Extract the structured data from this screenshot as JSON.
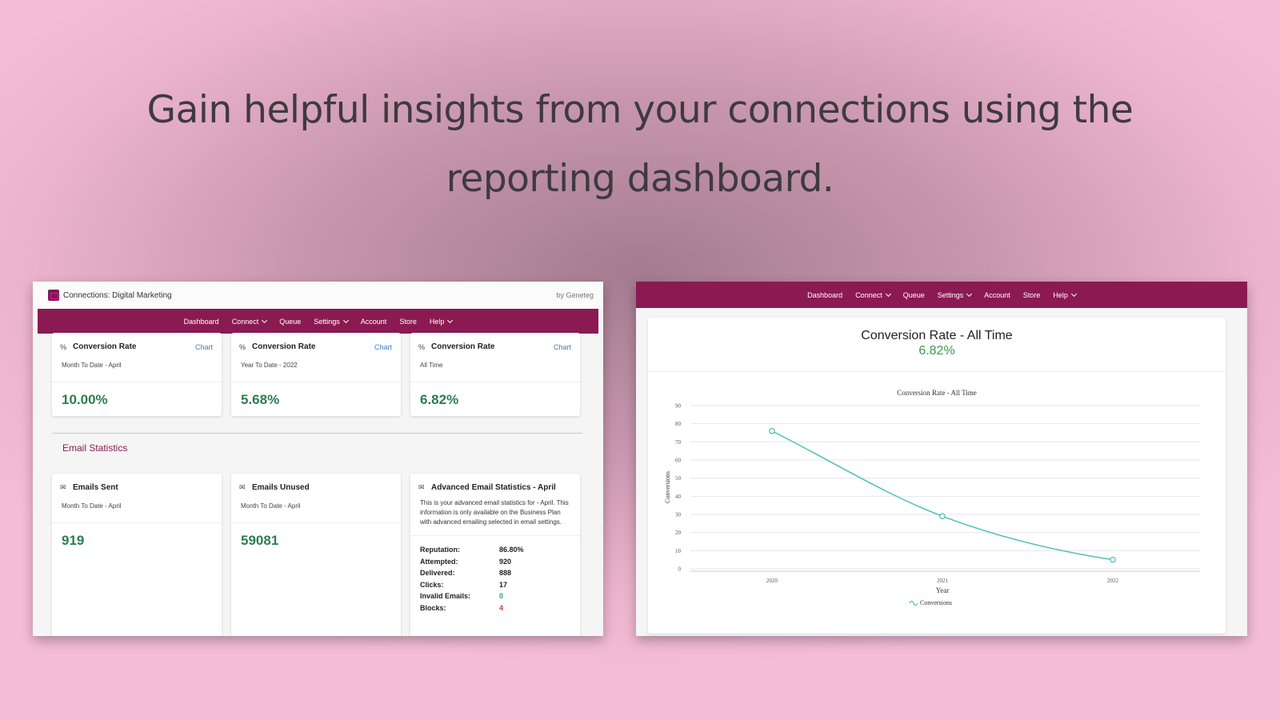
{
  "headline": "Gain helpful insights from your connections using the reporting dashboard.",
  "colors": {
    "nav": "#8b1a52",
    "value_green": "#2e7d4f",
    "line": "#4fbfb3",
    "link": "#3b7fc4"
  },
  "left_window": {
    "app_title": "Connections: Digital Marketing",
    "by": "by Geneteg",
    "nav": [
      {
        "label": "Dashboard",
        "dropdown": false
      },
      {
        "label": "Connect",
        "dropdown": true
      },
      {
        "label": "Queue",
        "dropdown": false
      },
      {
        "label": "Settings",
        "dropdown": true
      },
      {
        "label": "Account",
        "dropdown": false
      },
      {
        "label": "Store",
        "dropdown": false
      },
      {
        "label": "Help",
        "dropdown": true
      }
    ],
    "conversion_cards": [
      {
        "icon": "percent-icon",
        "title": "Conversion Rate",
        "link": "Chart",
        "subtitle": "Month To Date - April",
        "value": "10.00%"
      },
      {
        "icon": "percent-icon",
        "title": "Conversion Rate",
        "link": "Chart",
        "subtitle": "Year To Date - 2022",
        "value": "5.68%"
      },
      {
        "icon": "percent-icon",
        "title": "Conversion Rate",
        "link": "Chart",
        "subtitle": "All Time",
        "value": "6.82%"
      }
    ],
    "email_section_title": "Email Statistics",
    "email_cards": [
      {
        "icon": "envelope-icon",
        "title": "Emails Sent",
        "subtitle": "Month To Date - April",
        "value": "919"
      },
      {
        "icon": "envelope-icon",
        "title": "Emails Unused",
        "subtitle": "Month To Date - April",
        "value": "59081"
      }
    ],
    "advanced": {
      "icon": "envelope-icon",
      "title": "Advanced Email Statistics - April",
      "body": "This is your advanced email statistics for - April. This information is only available on the Business Plan with advanced emailing selected in email settings.",
      "stats": [
        {
          "label": "Reputation:",
          "value": "86.80%",
          "tone": "normal"
        },
        {
          "label": "Attempted:",
          "value": "920",
          "tone": "normal"
        },
        {
          "label": "Delivered:",
          "value": "888",
          "tone": "normal"
        },
        {
          "label": "Clicks:",
          "value": "17",
          "tone": "normal"
        },
        {
          "label": "Invalid Emails:",
          "value": "0",
          "tone": "ok"
        },
        {
          "label": "Blocks:",
          "value": "4",
          "tone": "bad"
        }
      ]
    }
  },
  "right_window": {
    "nav": [
      {
        "label": "Dashboard",
        "dropdown": false
      },
      {
        "label": "Connect",
        "dropdown": true
      },
      {
        "label": "Queue",
        "dropdown": false
      },
      {
        "label": "Settings",
        "dropdown": true
      },
      {
        "label": "Account",
        "dropdown": false
      },
      {
        "label": "Store",
        "dropdown": false
      },
      {
        "label": "Help",
        "dropdown": true
      }
    ],
    "panel_title": "Conversion Rate - All Time",
    "panel_value": "6.82%"
  },
  "chart_data": {
    "type": "line",
    "title": "Conversion Rate - All Time",
    "xlabel": "Year",
    "ylabel": "Conversions",
    "categories": [
      "2020",
      "2021",
      "2022"
    ],
    "series": [
      {
        "name": "Conversions",
        "values": [
          76,
          29,
          5
        ]
      }
    ],
    "ylim": [
      0,
      90
    ],
    "yticks": [
      0,
      10,
      20,
      30,
      40,
      50,
      60,
      70,
      80,
      90
    ],
    "grid": true,
    "legend": "bottom"
  }
}
